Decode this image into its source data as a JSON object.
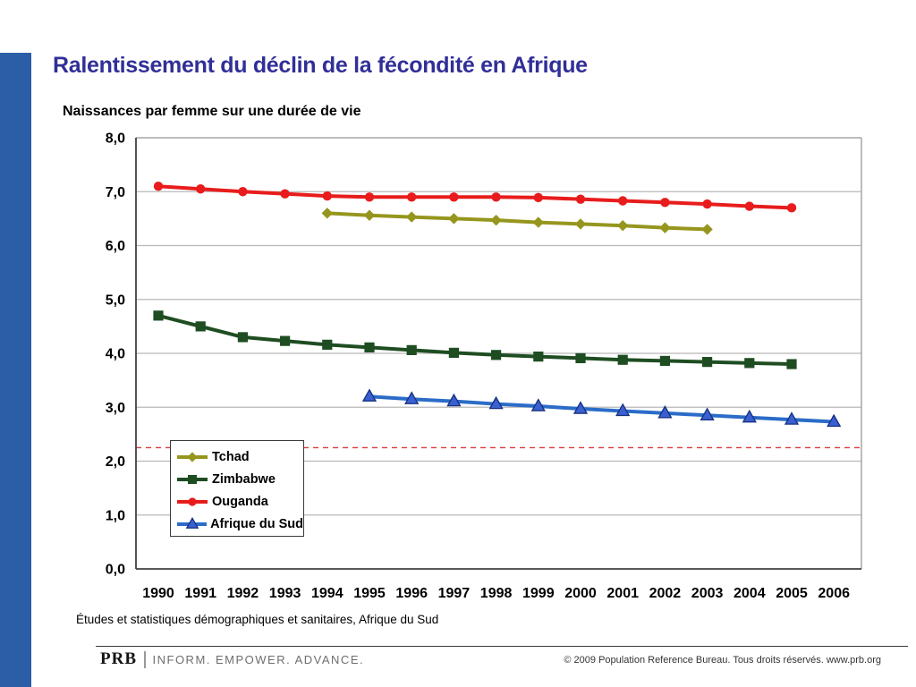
{
  "slide": {
    "title": "Ralentissement du déclin de la fécondité en Afrique",
    "source_note": "Études et statistiques démographiques et sanitaires, Afrique du Sud",
    "accent_bar_color": "#2B5EA7",
    "title_color": "#312F97",
    "footer": {
      "logo": "PRB",
      "tagline": "INFORM. EMPOWER. ADVANCE.",
      "copyright": "© 2009 Population Reference Bureau. Tous droits réservés. www.prb.org"
    }
  },
  "chart_data": {
    "type": "line",
    "title": "Naissances par femme sur une durée de vie",
    "xlabel": "",
    "ylabel": "Naissances par femme",
    "x": [
      1990,
      1991,
      1992,
      1993,
      1994,
      1995,
      1996,
      1997,
      1998,
      1999,
      2000,
      2001,
      2002,
      2003,
      2004,
      2005,
      2006
    ],
    "xtick_labels": [
      "1990",
      "1991",
      "1992",
      "1993",
      "1994",
      "1995",
      "1996",
      "1997",
      "1998",
      "1999",
      "2000",
      "2001",
      "2002",
      "2003",
      "2004",
      "2005",
      "2006"
    ],
    "ylim": [
      0,
      8
    ],
    "ytick_step": 1,
    "ytick_labels": [
      "0,0",
      "1,0",
      "2,0",
      "3,0",
      "4,0",
      "5,0",
      "6,0",
      "7,0",
      "8,0"
    ],
    "grid": "horizontal",
    "gridline_color": "#b8b8b8",
    "legend_position": "inside-lower-left",
    "reference_line": {
      "value": 2.25,
      "style": "dashed",
      "color": "#D93A3A",
      "name": "replacement-fertility-line"
    },
    "series": [
      {
        "name": "Tchad",
        "color": "#96961E",
        "marker": "diamond",
        "marker_fill": "#96961E",
        "start_year": 1994,
        "values": [
          6.6,
          6.56,
          6.53,
          6.5,
          6.47,
          6.43,
          6.4,
          6.37,
          6.33,
          6.3
        ]
      },
      {
        "name": "Zimbabwe",
        "color": "#1E4D21",
        "marker": "square",
        "marker_fill": "#1E4D21",
        "start_year": 1990,
        "values": [
          4.7,
          4.5,
          4.3,
          4.23,
          4.16,
          4.11,
          4.06,
          4.01,
          3.97,
          3.94,
          3.91,
          3.88,
          3.86,
          3.84,
          3.82,
          3.8
        ]
      },
      {
        "name": "Ouganda",
        "color": "#E81C1C",
        "marker": "circle",
        "marker_fill": "#E81C1C",
        "start_year": 1990,
        "values": [
          7.1,
          7.05,
          7.0,
          6.96,
          6.92,
          6.9,
          6.9,
          6.9,
          6.9,
          6.89,
          6.86,
          6.83,
          6.8,
          6.77,
          6.73,
          6.7
        ]
      },
      {
        "name": "Afrique du Sud",
        "color": "#2B6CC8",
        "marker": "triangle",
        "marker_fill": "#3A5FD0",
        "marker_stroke": "#14307E",
        "start_year": 1995,
        "values": [
          3.2,
          3.15,
          3.11,
          3.06,
          3.02,
          2.97,
          2.93,
          2.89,
          2.85,
          2.81,
          2.77,
          2.73
        ]
      }
    ]
  }
}
